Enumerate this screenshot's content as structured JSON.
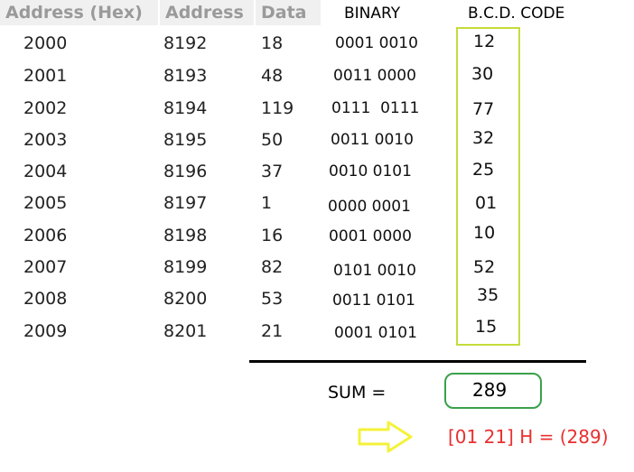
{
  "headers": {
    "address_hex": "Address (Hex)",
    "address": "Address",
    "data": "Data",
    "binary": "BINARY",
    "bcd": "B.C.D. CODE"
  },
  "rows": [
    {
      "hex": "2000",
      "address": "8192",
      "data": "18",
      "binary": "0001 0010",
      "bcd": "12"
    },
    {
      "hex": "2001",
      "address": "8193",
      "data": "48",
      "binary": "0011 0000",
      "bcd": "30"
    },
    {
      "hex": "2002",
      "address": "8194",
      "data": "119",
      "binary": "0111  0111",
      "bcd": "77"
    },
    {
      "hex": "2003",
      "address": "8195",
      "data": "50",
      "binary": "0011 0010",
      "bcd": "32"
    },
    {
      "hex": "2004",
      "address": "8196",
      "data": "37",
      "binary": "0010 0101",
      "bcd": "25"
    },
    {
      "hex": "2005",
      "address": "8197",
      "data": "1",
      "binary": "0000 0001",
      "bcd": "01"
    },
    {
      "hex": "2006",
      "address": "8198",
      "data": "16",
      "binary": "0001 0000",
      "bcd": "10"
    },
    {
      "hex": "2007",
      "address": "8199",
      "data": "82",
      "binary": "0101 0010",
      "bcd": "52"
    },
    {
      "hex": "2008",
      "address": "8200",
      "data": "53",
      "binary": "0011 0101",
      "bcd": "35"
    },
    {
      "hex": "2009",
      "address": "8201",
      "data": "21",
      "binary": "0001 0101",
      "bcd": "15"
    }
  ],
  "sum": {
    "label": "SUM =",
    "value": "289"
  },
  "result": "[01 21] H = (289)",
  "colors": {
    "header_bg": "#f0f0f0",
    "header_text": "#9a9a9a",
    "bcd_box": "#c6dc3b",
    "sum_box": "#3aa14a",
    "arrow": "#f4f23a",
    "result_text": "#e8302f"
  },
  "icons": {
    "arrow": "right-arrow-icon"
  }
}
